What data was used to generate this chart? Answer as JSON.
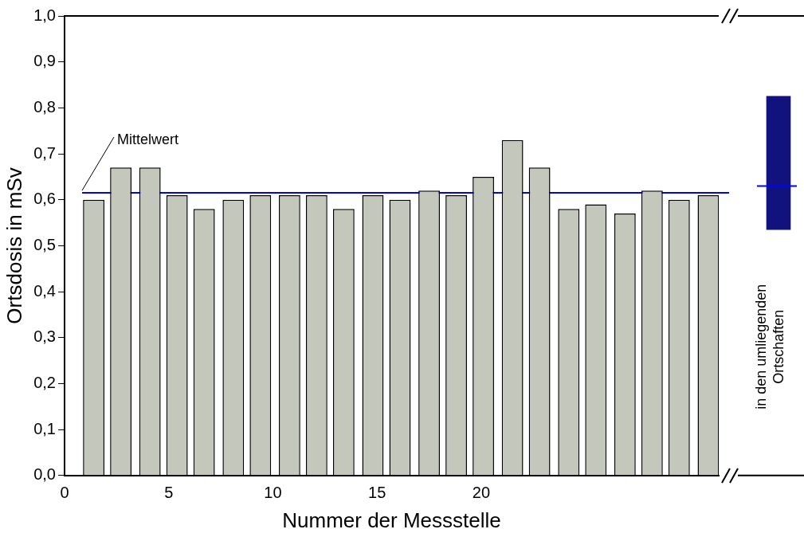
{
  "chart_data": [
    {
      "type": "bar",
      "xlabel": "Nummer der Messstelle",
      "ylabel": "Ortsdosis in mSv",
      "color": "#c4c8bc",
      "x": [
        1.4,
        2.7,
        4.1,
        5.4,
        6.7,
        8.1,
        9.4,
        10.8,
        12.1,
        13.4,
        14.8,
        16.1,
        17.5,
        18.8,
        20.1,
        21.5,
        22.8,
        24.2,
        25.5,
        26.9,
        28.2,
        29.5,
        30.9
      ],
      "values": [
        0.6,
        0.67,
        0.67,
        0.61,
        0.58,
        0.6,
        0.61,
        0.61,
        0.61,
        0.58,
        0.61,
        0.6,
        0.62,
        0.61,
        0.65,
        0.73,
        0.67,
        0.58,
        0.59,
        0.57,
        0.62,
        0.6,
        0.61
      ],
      "xlim": [
        0,
        31.4
      ],
      "xticks": [
        0,
        5,
        10,
        15,
        20
      ],
      "ylim": [
        0,
        1
      ],
      "yticks": [
        {
          "value": 0,
          "label": "0,0"
        },
        {
          "value": 0.1,
          "label": "0,1"
        },
        {
          "value": 0.2,
          "label": "0,2"
        },
        {
          "value": 0.3,
          "label": "0,3"
        },
        {
          "value": 0.4,
          "label": "0,4"
        },
        {
          "value": 0.5,
          "label": "0,5"
        },
        {
          "value": 0.6,
          "label": "0,6"
        },
        {
          "value": 0.7,
          "label": "0,7"
        },
        {
          "value": 0.8,
          "label": "0,8"
        },
        {
          "value": 0.9,
          "label": "0,9"
        },
        {
          "value": 1,
          "label": "1,0"
        }
      ],
      "ref_lines": [
        {
          "axis": "y",
          "value": 0.615,
          "label": "Mittelwert",
          "color": "#0000ff"
        }
      ],
      "grid": false,
      "legend": false
    },
    {
      "type": "bar",
      "categories": [
        null
      ],
      "values": [
        0.29
      ],
      "base": [
        0.535
      ],
      "color": "#12127e",
      "ylim": [
        0,
        1
      ],
      "tick_labels": false,
      "ref_lines": [
        {
          "axis": "y",
          "value": 0.63,
          "color": "#0000ff"
        }
      ],
      "annotations": [
        "in den umliegenden Ortschaften"
      ],
      "grid": false,
      "legend": false
    }
  ]
}
